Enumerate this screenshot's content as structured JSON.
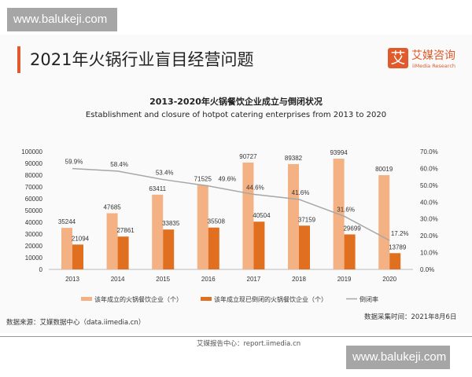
{
  "watermark": "www.balukeji.com",
  "header": {
    "title": "2021年火锅行业盲目经营问题",
    "logo_mark": "艾",
    "logo_name": "艾媒咨询",
    "logo_sub": "iiMedia Research"
  },
  "chart_data": {
    "type": "bar+line",
    "title": "2013-2020年火锅餐饮企业成立与倒闭状况",
    "subtitle": "Establishment and closure of hotpot catering enterprises from 2013 to 2020",
    "categories": [
      "2013",
      "2014",
      "2015",
      "2016",
      "2017",
      "2018",
      "2019",
      "2020"
    ],
    "series": [
      {
        "name": "该年成立的火锅餐饮企业（个）",
        "type": "bar",
        "axis": "left",
        "color": "#f4b183",
        "values": [
          35244,
          47685,
          63411,
          71525,
          90727,
          89382,
          93994,
          80019
        ]
      },
      {
        "name": "该年成立现已倒闭的火锅餐饮企业（个）",
        "type": "bar",
        "axis": "left",
        "color": "#e07020",
        "values": [
          21094,
          27861,
          33835,
          35508,
          40504,
          37159,
          29699,
          13789
        ]
      },
      {
        "name": "倒闭率",
        "type": "line",
        "axis": "right",
        "color": "#a6a6a6",
        "values": [
          59.9,
          58.4,
          53.4,
          49.6,
          44.6,
          41.6,
          31.6,
          17.2
        ],
        "labels": [
          "59.9%",
          "58.4%",
          "53.4%",
          "49.6%",
          "44.6%",
          "41.6%",
          "31.6%",
          "17.2%"
        ]
      }
    ],
    "ylim": [
      0,
      100000
    ],
    "yticks": [
      "0",
      "10000",
      "20000",
      "30000",
      "40000",
      "50000",
      "60000",
      "70000",
      "80000",
      "90000",
      "100000"
    ],
    "y2lim": [
      0,
      70
    ],
    "y2ticks": [
      "0.0%",
      "10.0%",
      "20.0%",
      "30.0%",
      "40.0%",
      "50.0%",
      "60.0%",
      "70.0%"
    ],
    "legend": "bottom"
  },
  "footer": {
    "source": "数据来源：艾媒数据中心（data.iimedia.cn）",
    "date": "数据采集时间：2021年8月6日",
    "report": "艾媒报告中心：report.iimedia.cn"
  }
}
